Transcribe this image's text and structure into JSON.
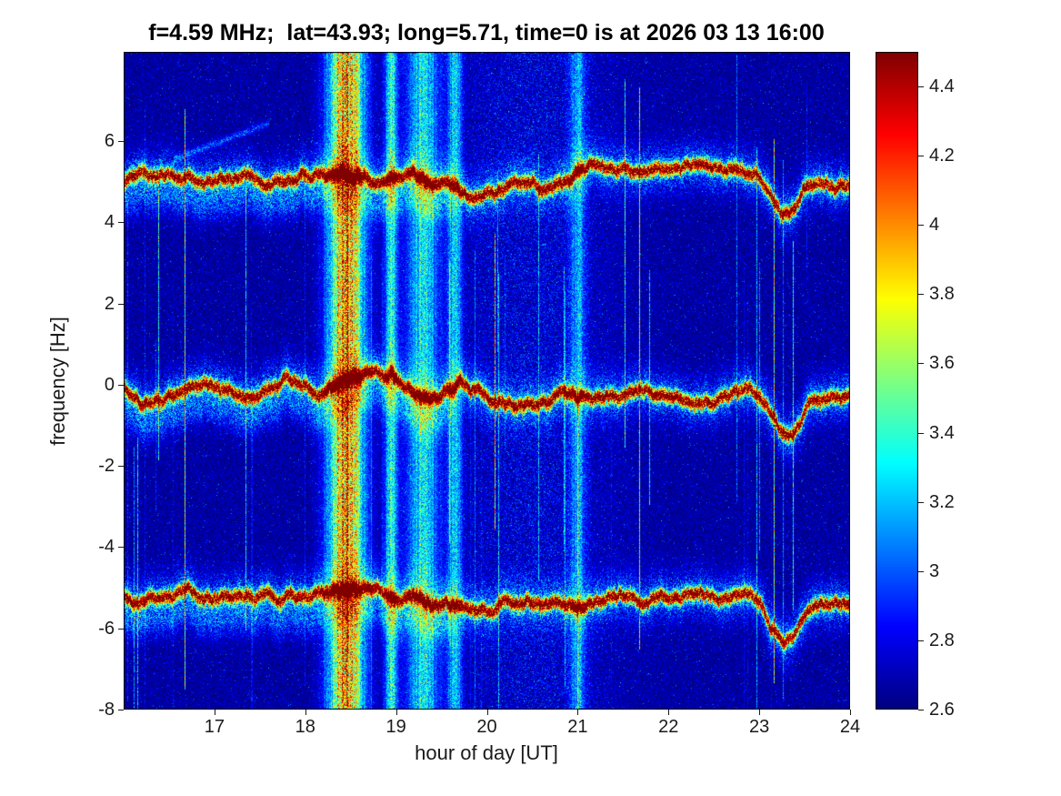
{
  "chart_data": {
    "type": "heatmap",
    "title": "f=4.59 MHz;  lat=43.93; long=5.71, time=0 is at 2026 03 13 16:00",
    "xlabel": "hour of day [UT]",
    "ylabel": "frequency [Hz]",
    "x_range": [
      16,
      24
    ],
    "y_range": [
      -8,
      8.2
    ],
    "x_ticks": [
      17,
      18,
      19,
      20,
      21,
      22,
      23,
      24
    ],
    "y_ticks": [
      6,
      4,
      2,
      0,
      -2,
      -4,
      -6,
      -8
    ],
    "colormap": "jet",
    "grid": false,
    "colorbar": {
      "range": [
        2.6,
        4.5
      ],
      "ticks": [
        4.4,
        4.2,
        4,
        3.8,
        3.6,
        3.4,
        3.2,
        3,
        2.8,
        2.6
      ],
      "position": "right"
    },
    "background_level": 2.65,
    "features": {
      "horizontal_traces": [
        {
          "name": "upper-doppler-trace",
          "freq": 5.0,
          "peak_level": 4.45
        },
        {
          "name": "center-carrier-trace",
          "freq": -0.1,
          "peak_level": 4.5
        },
        {
          "name": "lower-doppler-trace",
          "freq": -5.15,
          "peak_level": 4.45
        }
      ],
      "dip_event": {
        "time": 23.3,
        "depth_hz": 1.0,
        "width_h": 0.2
      },
      "vertical_bands": [
        {
          "time": 18.45,
          "width_h": 0.38,
          "level": 4.15
        },
        {
          "time": 18.95,
          "width_h": 0.14,
          "level": 3.45
        },
        {
          "time": 19.3,
          "width_h": 0.35,
          "level": 3.35
        },
        {
          "time": 19.65,
          "width_h": 0.14,
          "level": 3.35
        },
        {
          "time": 20.5,
          "width_h": 1.8,
          "level": 2.95
        },
        {
          "time": 21.0,
          "width_h": 0.18,
          "level": 3.2
        }
      ]
    }
  }
}
